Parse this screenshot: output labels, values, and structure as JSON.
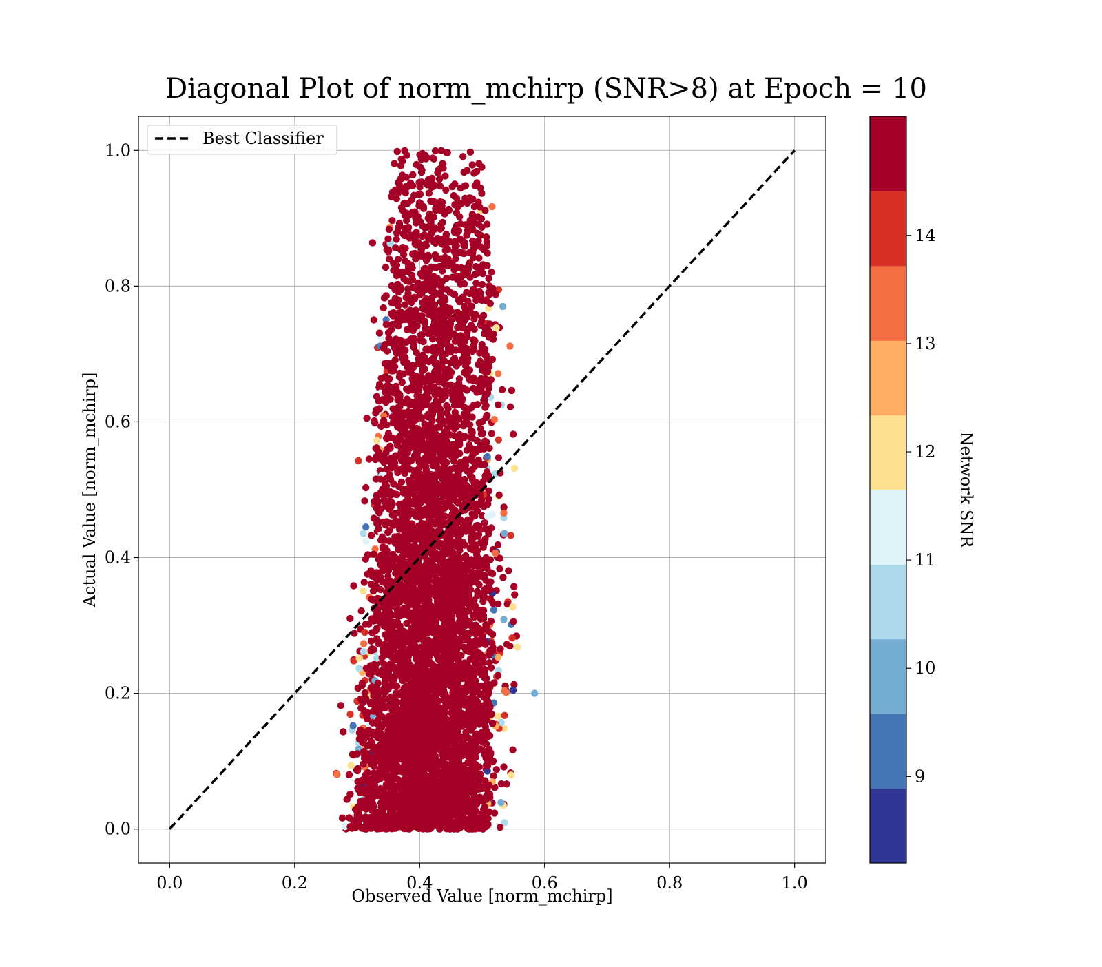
{
  "chart_data": {
    "type": "scatter",
    "title": "Diagonal Plot of norm_mchirp (SNR>8) at Epoch = 10",
    "xlabel": "Observed Value [norm_mchirp]",
    "ylabel": "Actual Value [norm_mchirp]",
    "xlim": [
      -0.05,
      1.05
    ],
    "ylim": [
      -0.05,
      1.05
    ],
    "xticks": [
      0.0,
      0.2,
      0.4,
      0.6,
      0.8,
      1.0
    ],
    "yticks": [
      0.0,
      0.2,
      0.4,
      0.6,
      0.8,
      1.0
    ],
    "xtick_labels": [
      "0.0",
      "0.2",
      "0.4",
      "0.6",
      "0.8",
      "1.0"
    ],
    "ytick_labels": [
      "0.0",
      "0.2",
      "0.4",
      "0.6",
      "0.8",
      "1.0"
    ],
    "grid": true,
    "legend": {
      "position": "top-left",
      "entries": [
        "Best Classifier"
      ]
    },
    "reference_line": {
      "name": "Best Classifier",
      "style": "dashed",
      "color": "#000000",
      "x": [
        0.0,
        1.0
      ],
      "y": [
        0.0,
        1.0
      ]
    },
    "scatter_spread": {
      "y_bins": [
        0.0,
        0.1,
        0.2,
        0.3,
        0.4,
        0.5,
        0.6,
        0.7,
        0.8,
        0.9,
        1.0
      ],
      "x_min": [
        0.25,
        0.26,
        0.27,
        0.28,
        0.28,
        0.29,
        0.29,
        0.3,
        0.3,
        0.31,
        0.32
      ],
      "x_max": [
        0.57,
        0.58,
        0.58,
        0.57,
        0.57,
        0.56,
        0.57,
        0.56,
        0.56,
        0.54,
        0.53
      ],
      "x_center": [
        0.4,
        0.41,
        0.41,
        0.42,
        0.42,
        0.42,
        0.42,
        0.43,
        0.43,
        0.43,
        0.43
      ],
      "dominant_color": "#a50026"
    },
    "colorbar": {
      "label": "Network SNR",
      "range": [
        8,
        15
      ],
      "ticks": [
        9,
        10,
        11,
        12,
        13,
        14
      ],
      "tick_labels": [
        "9",
        "10",
        "11",
        "12",
        "13",
        "14"
      ],
      "colors": [
        "#313695",
        "#4575b4",
        "#74add1",
        "#abd9e9",
        "#e0f3f8",
        "#fee090",
        "#fdae61",
        "#f46d43",
        "#d73027",
        "#a50026"
      ]
    }
  }
}
